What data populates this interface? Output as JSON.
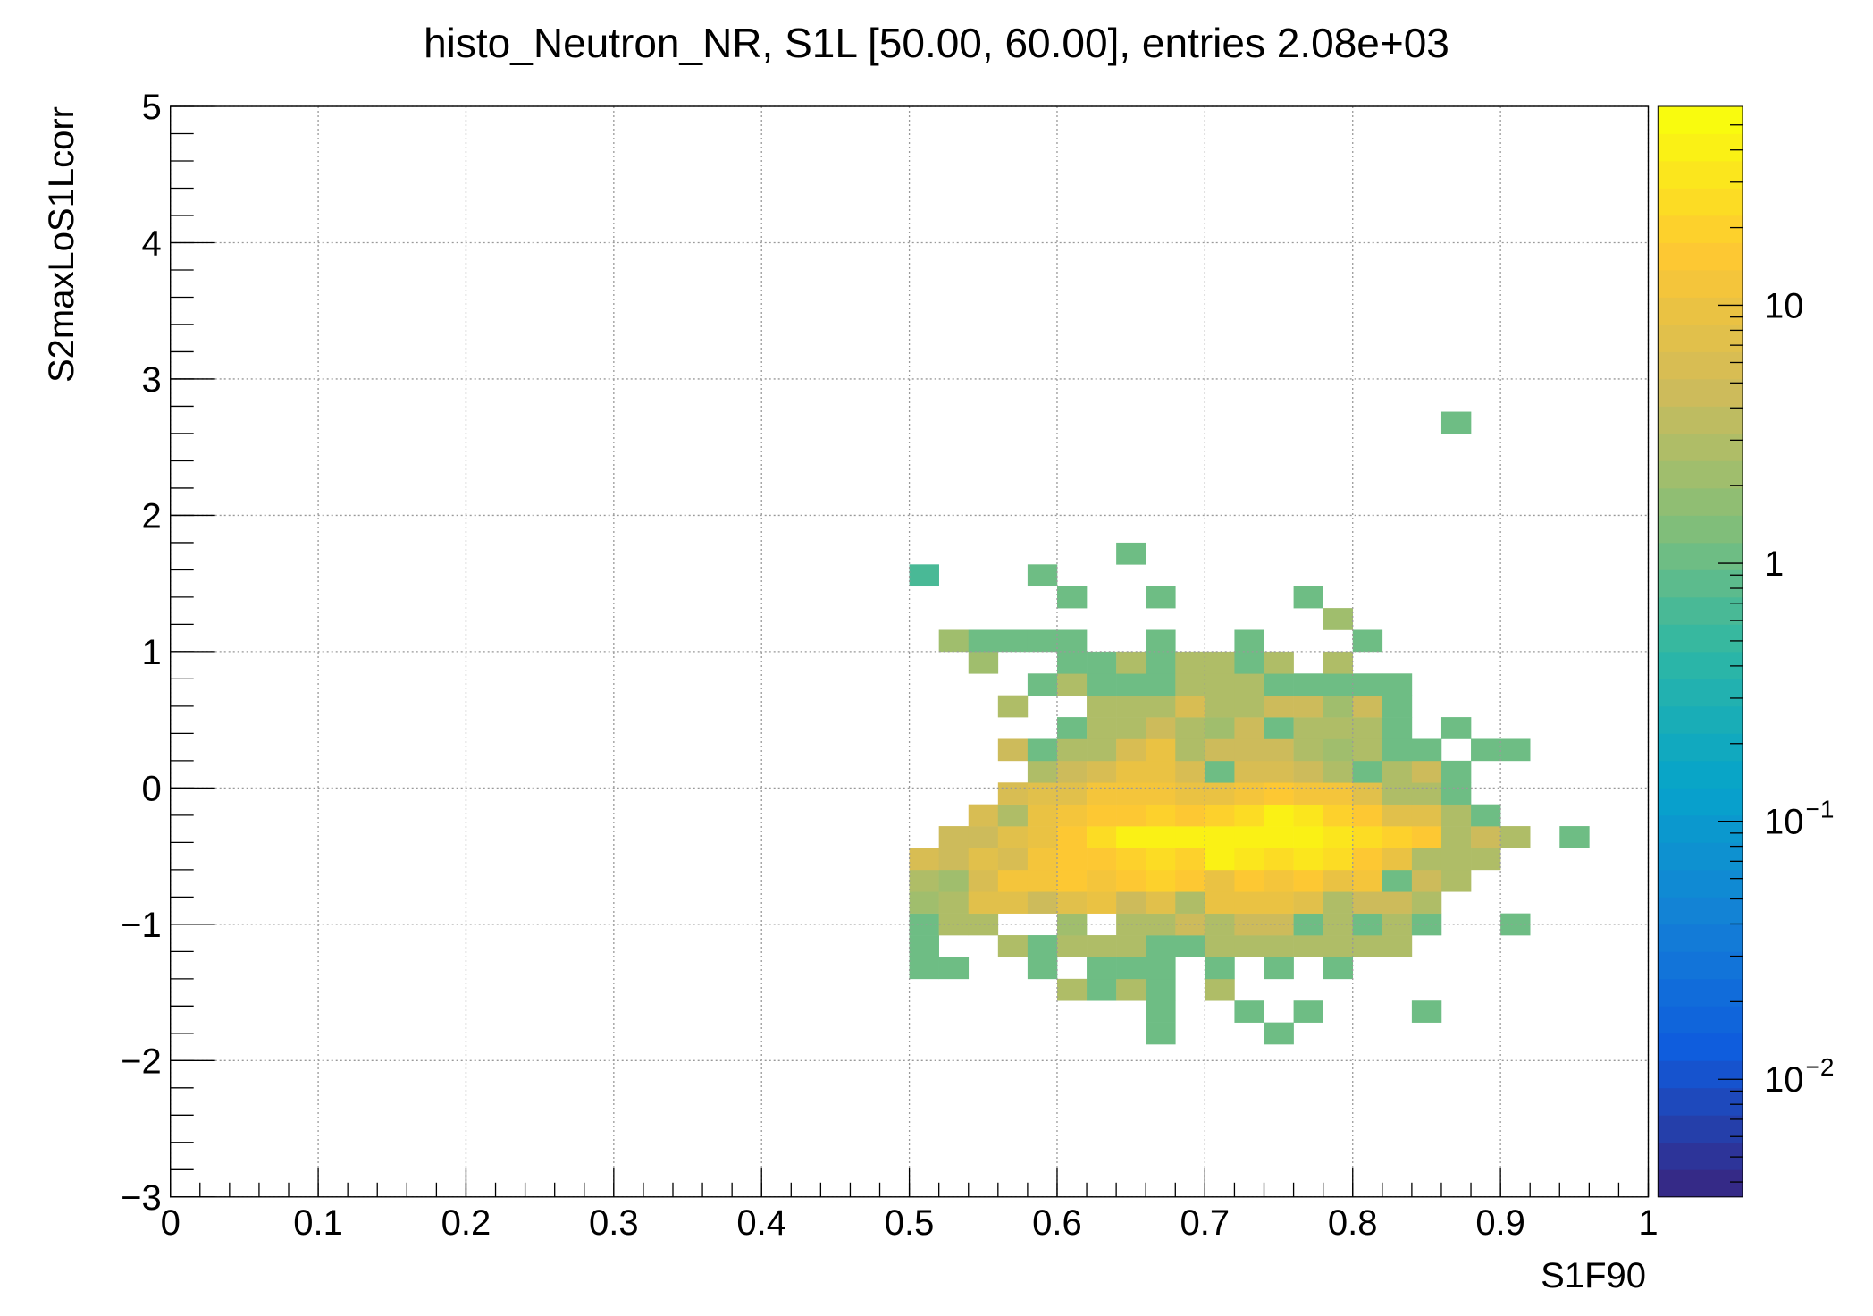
{
  "chart_data": {
    "type": "heatmap",
    "title": "histo_Neutron_NR, S1L [50.00, 60.00], entries 2.08e+03",
    "xlabel": "S1F90",
    "ylabel": "S2maxLoS1Lcorr",
    "xlim": [
      0,
      1
    ],
    "ylim": [
      -3,
      5
    ],
    "xticks": [
      0,
      0.1,
      0.2,
      0.3,
      0.4,
      0.5,
      0.6,
      0.7,
      0.8,
      0.9,
      1
    ],
    "yticks": [
      {
        "value": -3,
        "label": "−3"
      },
      {
        "value": -2,
        "label": "−2"
      },
      {
        "value": -1,
        "label": "−1"
      },
      0,
      1,
      2,
      3,
      4,
      5
    ],
    "grid": true,
    "zlim": [
      0.0035,
      59
    ],
    "zlog": true,
    "zticks": [
      {
        "value": 0.01,
        "label": "10",
        "exponent": "−2"
      },
      {
        "value": 0.1,
        "label": "10",
        "exponent": "−1"
      },
      1,
      10
    ],
    "palette": [
      "#352a87",
      "#0f5cdd",
      "#1481d6",
      "#06a4ca",
      "#2eb7a4",
      "#87bf77",
      "#d1bb59",
      "#fec832",
      "#f9fb0e"
    ],
    "xbins": [
      0.5,
      0.52,
      0.54,
      0.56,
      0.58,
      0.6,
      0.62,
      0.64,
      0.66,
      0.68,
      0.7,
      0.72,
      0.74,
      0.76,
      0.78,
      0.8,
      0.82,
      0.84,
      0.86,
      0.88,
      0.9,
      0.92,
      0.94,
      0.96
    ],
    "ybins": [
      -1.88,
      -1.72,
      -1.56,
      -1.4,
      -1.24,
      -1.08,
      -0.92,
      -0.76,
      -0.6,
      -0.44,
      -0.28,
      -0.12,
      0.04,
      0.2,
      0.36,
      0.52,
      0.68,
      0.84,
      1,
      1.16,
      1.32,
      1.48,
      1.64,
      1.8,
      1.96,
      2.12,
      2.28,
      2.44,
      2.6,
      2.76
    ],
    "z": [
      [
        null,
        null,
        null,
        null,
        null,
        null,
        null,
        null,
        1,
        null,
        null,
        null,
        1,
        null,
        null,
        null,
        null,
        null,
        null,
        null,
        null,
        null,
        null
      ],
      [
        null,
        null,
        null,
        null,
        null,
        null,
        null,
        null,
        1,
        null,
        null,
        1,
        null,
        1,
        null,
        null,
        null,
        1,
        null,
        null,
        null,
        null,
        null
      ],
      [
        null,
        null,
        null,
        null,
        null,
        3,
        1,
        3,
        1,
        null,
        3,
        null,
        null,
        null,
        null,
        null,
        null,
        null,
        null,
        null,
        null,
        null,
        null
      ],
      [
        1,
        1,
        null,
        null,
        1,
        null,
        1,
        1,
        1,
        null,
        1,
        null,
        1,
        null,
        1,
        null,
        null,
        null,
        null,
        null,
        null,
        null,
        null
      ],
      [
        1,
        null,
        null,
        3,
        1,
        3,
        3,
        3,
        1,
        1,
        3,
        3,
        3,
        3,
        3,
        3,
        3,
        null,
        null,
        null,
        null,
        null,
        null
      ],
      [
        1,
        3,
        3,
        null,
        null,
        2,
        null,
        3,
        3,
        5,
        3,
        5,
        5,
        1,
        3,
        1,
        3,
        1,
        null,
        null,
        1,
        null,
        null
      ],
      [
        2,
        3,
        8,
        8,
        5,
        8,
        10,
        5,
        8,
        3,
        10,
        10,
        10,
        8,
        3,
        5,
        5,
        3,
        null,
        null,
        null,
        null,
        null
      ],
      [
        3,
        2,
        6,
        12,
        12,
        15,
        12,
        15,
        20,
        15,
        10,
        15,
        12,
        15,
        10,
        12,
        1,
        5,
        3,
        null,
        null,
        null,
        null
      ],
      [
        6,
        5,
        8,
        6,
        12,
        15,
        15,
        20,
        25,
        20,
        40,
        30,
        25,
        30,
        25,
        15,
        10,
        3,
        3,
        3,
        null,
        null,
        null
      ],
      [
        null,
        5,
        5,
        8,
        10,
        15,
        25,
        40,
        45,
        45,
        40,
        45,
        45,
        40,
        30,
        25,
        20,
        15,
        3,
        5,
        3,
        null,
        1
      ],
      [
        null,
        null,
        6,
        3,
        10,
        12,
        15,
        15,
        20,
        15,
        20,
        25,
        40,
        30,
        20,
        15,
        8,
        8,
        3,
        1,
        null,
        null,
        null
      ],
      [
        null,
        null,
        null,
        6,
        8,
        8,
        12,
        12,
        12,
        10,
        10,
        12,
        15,
        12,
        12,
        8,
        3,
        3,
        1,
        null,
        null,
        null,
        null
      ],
      [
        null,
        null,
        null,
        null,
        3,
        5,
        6,
        10,
        10,
        6,
        1,
        6,
        6,
        5,
        3,
        1,
        3,
        5,
        1,
        null,
        null,
        null,
        null
      ],
      [
        null,
        null,
        null,
        5,
        1,
        3,
        3,
        6,
        10,
        3,
        5,
        5,
        5,
        3,
        2,
        3,
        1,
        1,
        null,
        1,
        1,
        null,
        null
      ],
      [
        null,
        null,
        null,
        null,
        null,
        1,
        3,
        3,
        5,
        3,
        2,
        5,
        1,
        3,
        3,
        3,
        1,
        null,
        1,
        null,
        null,
        null,
        null
      ],
      [
        null,
        null,
        null,
        3,
        null,
        null,
        3,
        3,
        3,
        6,
        3,
        3,
        5,
        5,
        2,
        5,
        1,
        null,
        null,
        null,
        null,
        null,
        null
      ],
      [
        null,
        null,
        null,
        null,
        1,
        3,
        1,
        1,
        1,
        3,
        3,
        3,
        1,
        1,
        1,
        1,
        1,
        null,
        null,
        null,
        null,
        null,
        null
      ],
      [
        null,
        null,
        2,
        null,
        null,
        1,
        1,
        3,
        1,
        3,
        3,
        1,
        3,
        null,
        3,
        null,
        null,
        null,
        null,
        null,
        null,
        null,
        null
      ],
      [
        null,
        2,
        1,
        1,
        1,
        1,
        null,
        null,
        1,
        null,
        null,
        1,
        null,
        null,
        null,
        1,
        null,
        null,
        null,
        null,
        null,
        null,
        null
      ],
      [
        null,
        null,
        null,
        null,
        null,
        null,
        null,
        null,
        null,
        null,
        null,
        null,
        null,
        null,
        2,
        null,
        null,
        null,
        null,
        null,
        null,
        null,
        null
      ],
      [
        null,
        null,
        null,
        null,
        null,
        1,
        null,
        null,
        1,
        null,
        null,
        null,
        null,
        1,
        null,
        null,
        null,
        null,
        null,
        null,
        null,
        null,
        null
      ],
      [
        0.6,
        null,
        null,
        null,
        1,
        null,
        null,
        null,
        null,
        null,
        null,
        null,
        null,
        null,
        null,
        null,
        null,
        null,
        null,
        null,
        null,
        null,
        null
      ],
      [
        null,
        null,
        null,
        null,
        null,
        null,
        null,
        1,
        null,
        null,
        null,
        null,
        null,
        null,
        null,
        null,
        null,
        null,
        null,
        null,
        null,
        null,
        null
      ],
      [
        null,
        null,
        null,
        null,
        null,
        null,
        null,
        null,
        null,
        null,
        null,
        null,
        null,
        null,
        null,
        null,
        null,
        null,
        null,
        null,
        null,
        null,
        null
      ],
      [
        null,
        null,
        null,
        null,
        null,
        null,
        null,
        null,
        null,
        null,
        null,
        null,
        null,
        null,
        null,
        null,
        null,
        null,
        null,
        null,
        null,
        null,
        null
      ],
      [
        null,
        null,
        null,
        null,
        null,
        null,
        null,
        null,
        null,
        null,
        null,
        null,
        null,
        null,
        null,
        null,
        null,
        null,
        null,
        null,
        null,
        null,
        null
      ],
      [
        null,
        null,
        null,
        null,
        null,
        null,
        null,
        null,
        null,
        null,
        null,
        null,
        null,
        null,
        null,
        null,
        null,
        null,
        null,
        null,
        null,
        null,
        null
      ],
      [
        null,
        null,
        null,
        null,
        null,
        null,
        null,
        null,
        null,
        null,
        null,
        null,
        null,
        null,
        null,
        null,
        null,
        null,
        null,
        null,
        null,
        null,
        null
      ],
      [
        null,
        null,
        null,
        null,
        null,
        null,
        null,
        null,
        null,
        null,
        null,
        null,
        null,
        null,
        null,
        null,
        null,
        null,
        1,
        null,
        null,
        null,
        null
      ]
    ]
  }
}
